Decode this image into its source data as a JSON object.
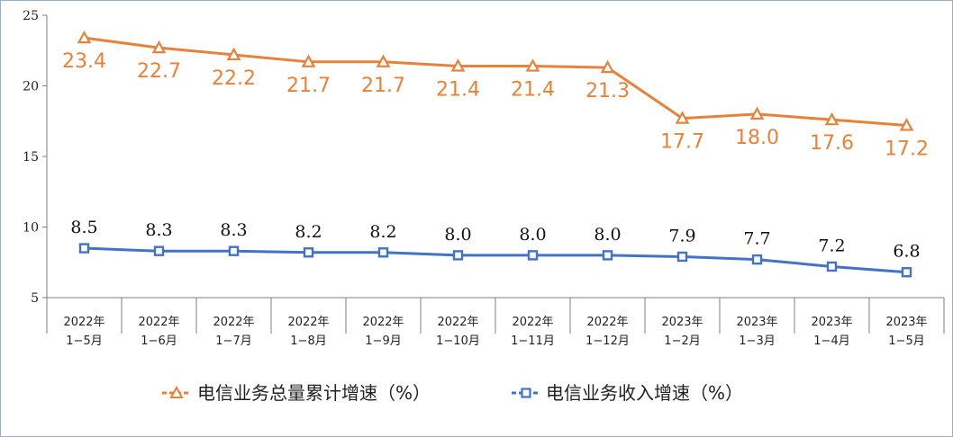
{
  "chart_data": {
    "type": "line",
    "categories": [
      [
        "2022年",
        "1−5月"
      ],
      [
        "2022年",
        "1−6月"
      ],
      [
        "2022年",
        "1−7月"
      ],
      [
        "2022年",
        "1−8月"
      ],
      [
        "2022年",
        "1−9月"
      ],
      [
        "2022年",
        "1−10月"
      ],
      [
        "2022年",
        "1−11月"
      ],
      [
        "2022年",
        "1−12月"
      ],
      [
        "2023年",
        "1−2月"
      ],
      [
        "2023年",
        "1−3月"
      ],
      [
        "2023年",
        "1−4月"
      ],
      [
        "2023年",
        "1−5月"
      ]
    ],
    "ylim": [
      5,
      25
    ],
    "yticks": [
      5,
      10,
      15,
      20,
      25
    ],
    "grid": false,
    "legend_position": "bottom",
    "series": [
      {
        "name": "电信业务总量累计增速（%）",
        "color": "#e8823a",
        "marker": "triangle",
        "values": [
          23.4,
          22.7,
          22.2,
          21.7,
          21.7,
          21.4,
          21.4,
          21.3,
          17.7,
          18.0,
          17.6,
          17.2
        ],
        "labels": [
          "23.4",
          "22.7",
          "22.2",
          "21.7",
          "21.7",
          "21.4",
          "21.4",
          "21.3",
          "17.7",
          "18.0",
          "17.6",
          "17.2"
        ]
      },
      {
        "name": "电信业务收入增速（%）",
        "color": "#4472c4",
        "marker": "square",
        "values": [
          8.5,
          8.3,
          8.3,
          8.2,
          8.2,
          8.0,
          8.0,
          8.0,
          7.9,
          7.7,
          7.2,
          6.8
        ],
        "labels": [
          "8.5",
          "8.3",
          "8.3",
          "8.2",
          "8.2",
          "8.0",
          "8.0",
          "8.0",
          "7.9",
          "7.7",
          "7.2",
          "6.8"
        ]
      }
    ]
  }
}
